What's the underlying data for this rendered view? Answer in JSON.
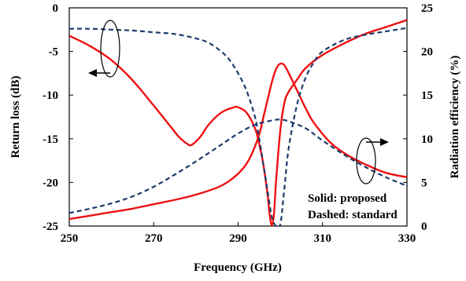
{
  "chart_data": {
    "type": "line",
    "xlabel": "Frequency (GHz)",
    "ylabel_left": "Return loss (dB)",
    "ylabel_right": "Radiation efficiency (%)",
    "xlim": [
      250,
      330
    ],
    "ylim_left": [
      -25,
      0
    ],
    "ylim_right": [
      0,
      25
    ],
    "x_ticks": [
      250,
      270,
      290,
      310,
      330
    ],
    "y_left_ticks": [
      0,
      -5,
      -10,
      -15,
      -20,
      -25
    ],
    "y_right_ticks": [
      25,
      20,
      15,
      10,
      5,
      0
    ],
    "grid": false,
    "legend_annotation": [
      "Solid: proposed",
      "Dashed: standard"
    ],
    "series": [
      {
        "axis": "left",
        "style": "solid",
        "color": "#ee1111",
        "x": [
          250,
          255,
          260,
          265,
          270,
          274,
          276,
          278,
          279,
          281,
          283,
          286,
          289,
          290,
          292,
          294,
          295,
          296,
          297,
          297.5,
          298,
          298.5,
          299,
          300,
          301,
          302,
          304,
          306,
          310,
          315,
          320,
          325,
          330
        ],
        "values": [
          -3.2,
          -4.4,
          -6.0,
          -8.3,
          -11.2,
          -13.6,
          -14.8,
          -15.6,
          -15.7,
          -14.8,
          -13.4,
          -12.0,
          -11.4,
          -11.4,
          -12.0,
          -13.8,
          -15.6,
          -18.0,
          -21.5,
          -23.8,
          -24.9,
          -23.6,
          -19.8,
          -14.0,
          -10.8,
          -9.6,
          -8.2,
          -6.9,
          -5.4,
          -4.1,
          -3.0,
          -2.2,
          -1.4
        ]
      },
      {
        "axis": "right",
        "style": "solid",
        "color": "#ee1111",
        "x": [
          250,
          255,
          260,
          265,
          270,
          275,
          280,
          285,
          288,
          291,
          293,
          295,
          296,
          297,
          298,
          299,
          300,
          301,
          302,
          304,
          306,
          308,
          312,
          316,
          320,
          325,
          330
        ],
        "values": [
          0.8,
          1.2,
          1.6,
          2.0,
          2.5,
          3.0,
          3.6,
          4.4,
          5.2,
          6.5,
          8.0,
          10.5,
          12.5,
          14.5,
          16.5,
          18.0,
          18.6,
          18.4,
          17.5,
          15.5,
          13.5,
          11.8,
          9.5,
          8.1,
          7.1,
          6.1,
          5.6
        ]
      },
      {
        "axis": "left",
        "style": "dashed",
        "color": "#1f3b6b",
        "x": [
          250,
          255,
          260,
          265,
          270,
          275,
          280,
          283,
          286,
          288,
          290,
          292,
          294,
          295,
          296,
          297,
          298,
          299,
          300,
          301,
          302,
          304,
          306,
          308,
          310,
          315,
          320,
          325,
          330
        ],
        "values": [
          -2.4,
          -2.4,
          -2.5,
          -2.6,
          -2.8,
          -3.0,
          -3.5,
          -4.0,
          -5.0,
          -6.0,
          -7.5,
          -9.5,
          -12.5,
          -15.0,
          -18.0,
          -21.0,
          -24.0,
          -25.0,
          -24.8,
          -20.5,
          -16.0,
          -11.0,
          -8.0,
          -6.2,
          -5.0,
          -3.7,
          -3.1,
          -2.7,
          -2.3
        ]
      },
      {
        "axis": "right",
        "style": "dashed",
        "color": "#1f3b6b",
        "x": [
          250,
          255,
          260,
          265,
          270,
          275,
          280,
          285,
          290,
          294,
          298,
          300,
          302,
          306,
          310,
          315,
          320,
          325,
          330
        ],
        "values": [
          1.5,
          2.0,
          2.6,
          3.4,
          4.5,
          5.9,
          7.4,
          9.0,
          10.6,
          11.6,
          12.1,
          12.2,
          12.0,
          11.2,
          9.8,
          8.2,
          6.8,
          5.6,
          4.6
        ]
      }
    ]
  }
}
